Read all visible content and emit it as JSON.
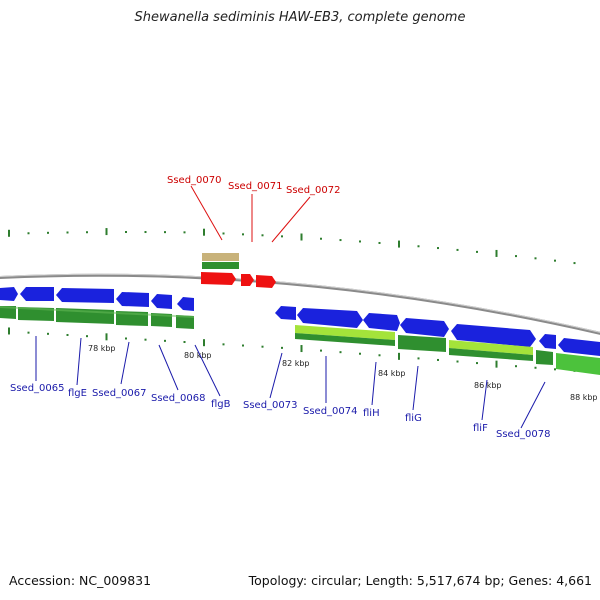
{
  "title": "Shewanella sediminis HAW-EB3, complete genome",
  "footer": {
    "accession": "Accession: NC_009831",
    "topology": "Topology: circular; Length: 5,517,674 bp; Genes: 4,661"
  },
  "colors": {
    "backbone": "#8a8a8a",
    "cds_forward": "#1a22dd",
    "cds_reverse": "#2a8a2a",
    "gene_green": "#3c9a3c",
    "gene_light_green": "#9ede2e",
    "highlight": "#ee1111",
    "highlight_label": "#cc0000",
    "label": "#1a1aaa",
    "tick": "#2e7d2e",
    "tan": "#c8b27a"
  },
  "scale_labels": [
    "78 kbp",
    "80 kbp",
    "82 kbp",
    "84 kbp",
    "86 kbp",
    "88 kbp"
  ],
  "highlighted_genes": [
    "Ssed_0070",
    "Ssed_0071",
    "Ssed_0072"
  ],
  "gene_labels": [
    "Ssed_0065",
    "flgE",
    "Ssed_0067",
    "Ssed_0068",
    "flgB",
    "Ssed_0073",
    "Ssed_0074",
    "fliH",
    "fliG",
    "fliF",
    "Ssed_0078"
  ]
}
